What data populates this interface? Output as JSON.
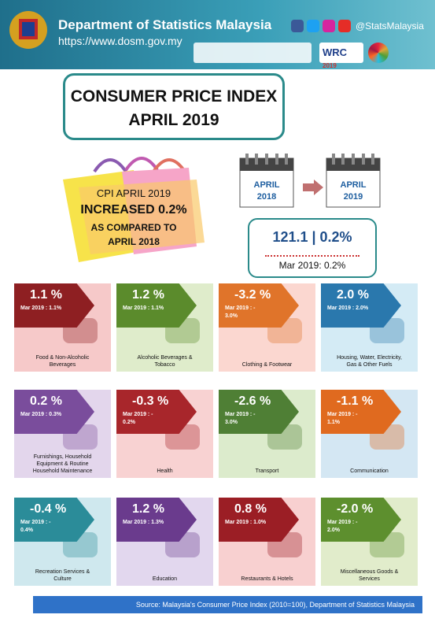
{
  "header": {
    "org": "Department of Statistics Malaysia",
    "url": "https://www.dosm.gov.my",
    "social": "@StatsMalaysia",
    "badge": "WRC",
    "badge_year": "2019"
  },
  "title": {
    "line1": "CONSUMER PRICE INDEX",
    "line2": "APRIL 2019"
  },
  "highlight": {
    "line1": "CPI APRIL 2019",
    "line2": "INCREASED 0.2%",
    "line3": "AS COMPARED TO",
    "line4": "APRIL 2018"
  },
  "comparison": {
    "from": [
      "APRIL",
      "2018"
    ],
    "to": [
      "APRIL",
      "2019"
    ],
    "index": "121.1 | 0.2%",
    "previous": "Mar 2019: 0.2%"
  },
  "groups": [
    {
      "change": "1.1 %",
      "previous": [
        "Mar 2019 : 1.1%"
      ],
      "label": [
        "Food & Non-Alcoholic",
        "Beverages"
      ]
    },
    {
      "change": "1.2 %",
      "previous": [
        "Mar 2019 : 1.1%"
      ],
      "label": [
        "Alcoholic Beverages &",
        "Tobacco"
      ]
    },
    {
      "change": "-3.2 %",
      "previous": [
        "Mar 2019 : -",
        "3.0%"
      ],
      "label": [
        "Clothing & Footwear"
      ]
    },
    {
      "change": "2.0 %",
      "previous": [
        "Mar 2019 : 2.0%"
      ],
      "label": [
        "Housing, Water, Electricity,",
        "Gas & Other Fuels"
      ]
    },
    {
      "change": "0.2 %",
      "previous": [
        "Mar 2019 : 0.3%"
      ],
      "label": [
        "Furnishings, Household",
        "Equipment & Routine",
        "Household Maintenance"
      ]
    },
    {
      "change": "-0.3 %",
      "previous": [
        "Mar 2019 : -",
        "0.2%"
      ],
      "label": [
        "Health"
      ]
    },
    {
      "change": "-2.6 %",
      "previous": [
        "Mar 2019 : -",
        "3.0%"
      ],
      "label": [
        "Transport"
      ]
    },
    {
      "change": "-1.1 %",
      "previous": [
        "Mar 2019 : -",
        "1.1%"
      ],
      "label": [
        "Communication"
      ]
    },
    {
      "change": "-0.4 %",
      "previous": [
        "Mar 2019 : -",
        "0.4%"
      ],
      "label": [
        "Recreation Services &",
        "Culture"
      ]
    },
    {
      "change": "1.2 %",
      "previous": [
        "Mar 2019 : 1.3%"
      ],
      "label": [
        "Education"
      ]
    },
    {
      "change": "0.8 %",
      "previous": [
        "Mar 2019 : 1.0%"
      ],
      "label": [
        "Restaurants & Hotels"
      ]
    },
    {
      "change": "-2.0 %",
      "previous": [
        "Mar 2019 : -",
        "2.0%"
      ],
      "label": [
        "Miscellaneous Goods &",
        "Services"
      ]
    }
  ],
  "source": "Source: Malaysia's Consumer Price Index (2010=100), Department of Statistics Malaysia"
}
